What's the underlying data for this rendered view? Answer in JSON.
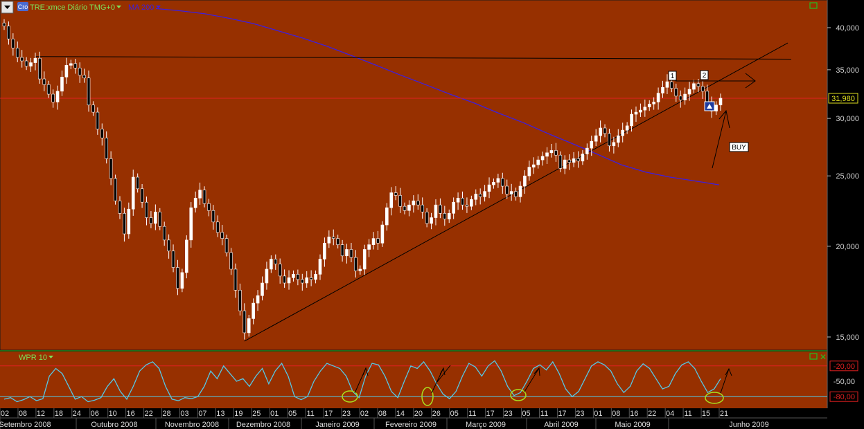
{
  "header": {
    "symbol_label": "TRE:xmce Diário TMG+0",
    "ma_label": "MA 200",
    "logo_text": "Cro"
  },
  "price_axis": {
    "labels": [
      "40,000",
      "35,000",
      "30,000",
      "25,000",
      "20,000",
      "15,000"
    ],
    "values": [
      40,
      35,
      30,
      25,
      20,
      15
    ],
    "scale": "log"
  },
  "last_price_label": "31,980",
  "indicator": {
    "label": "WPR 10",
    "level_labels": [
      "-20,00",
      "-50,00",
      "-80,00"
    ],
    "levels": [
      -20,
      -50,
      -80
    ]
  },
  "annotations": {
    "marker_1": "1",
    "marker_2": "2",
    "buy": "BUY"
  },
  "x_axis": {
    "day_labels": [
      "02",
      "08",
      "12",
      "18",
      "24",
      "06",
      "10",
      "16",
      "22",
      "28",
      "03",
      "07",
      "13",
      "19",
      "25",
      "01",
      "05",
      "11",
      "17",
      "23",
      "02",
      "08",
      "14",
      "20",
      "26",
      "05",
      "11",
      "17",
      "23",
      "05",
      "11",
      "17",
      "23",
      "01",
      "08",
      "16",
      "22",
      "04",
      "11",
      "15",
      "21",
      "01",
      "08",
      "12",
      "18"
    ],
    "month_labels": [
      "Setembro 2008",
      "Outubro 2008",
      "Novembro 2008",
      "Dezembro 2008",
      "Janeiro 2009",
      "Fevereiro 2009",
      "Março 2009",
      "Abril 2009",
      "Maio 2009",
      "Junho 2009"
    ]
  },
  "colors": {
    "background": "#973000",
    "up_candle": "#ffffff",
    "ma_line": "#3c1ee0",
    "wpr_line": "#55c8e6",
    "red_level": "#e02020",
    "oversold_level": "#55c8e6",
    "highlight_circle": "#a8e020",
    "green_frame": "#22c022"
  },
  "chart_data": {
    "type": "candlestick",
    "ylim": [
      14.5,
      42.5
    ],
    "close": [
      40.2,
      38.6,
      37.5,
      36.4,
      36.0,
      35.4,
      35.8,
      36.3,
      34.0,
      33.4,
      32.4,
      31.6,
      32.7,
      34.2,
      35.5,
      35.7,
      35.2,
      34.4,
      34.1,
      31.3,
      30.6,
      29.0,
      28.2,
      26.4,
      24.8,
      23.1,
      22.2,
      20.8,
      22.5,
      24.9,
      24.0,
      23.0,
      21.9,
      21.5,
      22.3,
      21.3,
      20.4,
      19.7,
      18.7,
      17.5,
      18.4,
      20.4,
      22.6,
      23.3,
      23.9,
      22.9,
      22.4,
      21.6,
      20.9,
      20.5,
      19.6,
      18.6,
      17.4,
      16.3,
      15.2,
      15.9,
      16.7,
      17.1,
      17.8,
      18.6,
      19.2,
      18.9,
      18.2,
      17.8,
      18.1,
      18.3,
      18.0,
      17.8,
      18.1,
      18.0,
      18.3,
      19.2,
      20.2,
      20.6,
      20.5,
      20.1,
      19.4,
      19.8,
      19.3,
      18.5,
      18.6,
      19.8,
      20.1,
      20.5,
      20.2,
      21.4,
      22.6,
      23.7,
      23.5,
      22.7,
      22.4,
      22.8,
      23.1,
      22.8,
      22.3,
      21.5,
      21.9,
      22.8,
      22.2,
      21.8,
      22.2,
      23.0,
      23.3,
      22.8,
      22.7,
      23.2,
      23.6,
      23.4,
      23.8,
      24.3,
      24.5,
      24.8,
      24.2,
      23.6,
      23.8,
      23.4,
      24.2,
      25.0,
      25.7,
      25.9,
      26.3,
      26.6,
      26.9,
      27.1,
      26.7,
      25.6,
      26.3,
      26.1,
      26.4,
      26.2,
      26.8,
      27.3,
      27.9,
      28.4,
      29.1,
      28.6,
      27.5,
      27.8,
      28.4,
      28.9,
      29.3,
      30.4,
      30.6,
      30.8,
      31.1,
      31.4,
      31.6,
      32.5,
      33.1,
      33.7,
      33.0,
      32.2,
      31.8,
      32.4,
      32.9,
      33.5,
      33.2,
      32.7,
      31.4,
      30.7,
      31.3,
      31.98
    ],
    "ma200": [
      42.5,
      42.2,
      41.8,
      41.2,
      40.5,
      39.6,
      38.7,
      37.7,
      36.6,
      35.5,
      34.4,
      33.4,
      32.4,
      31.5,
      30.5,
      29.6,
      28.6,
      27.7,
      26.8,
      25.9,
      25.3,
      24.9,
      24.6,
      24.3
    ],
    "support_line": {
      "from_index": 54,
      "from_price": 14.8,
      "to_index": 161,
      "to_price": 33.9
    },
    "resistance_line": {
      "from_price": 36.5,
      "to_price": 36.2
    },
    "wpr": [
      -85,
      -82,
      -90,
      -86,
      -80,
      -88,
      -84,
      -40,
      -25,
      -35,
      -60,
      -85,
      -80,
      -90,
      -87,
      -82,
      -60,
      -45,
      -70,
      -85,
      -60,
      -30,
      -18,
      -12,
      -25,
      -60,
      -85,
      -88,
      -82,
      -84,
      -80,
      -60,
      -30,
      -45,
      -20,
      -35,
      -50,
      -45,
      -60,
      -40,
      -25,
      -55,
      -30,
      -15,
      -40,
      -80,
      -86,
      -80,
      -50,
      -30,
      -15,
      -20,
      -25,
      -40,
      -70,
      -82,
      -40,
      -15,
      -18,
      -40,
      -70,
      -82,
      -50,
      -20,
      -25,
      -12,
      -30,
      -55,
      -75,
      -84,
      -70,
      -40,
      -15,
      -22,
      -40,
      -20,
      -10,
      -30,
      -60,
      -78,
      -72,
      -50,
      -25,
      -18,
      -28,
      -12,
      -35,
      -65,
      -80,
      -70,
      -45,
      -20,
      -12,
      -18,
      -30,
      -55,
      -72,
      -60,
      -30,
      -16,
      -25,
      -45,
      -65,
      -60,
      -35,
      -18,
      -12,
      -25,
      -50,
      -72,
      -65,
      -45
    ]
  }
}
